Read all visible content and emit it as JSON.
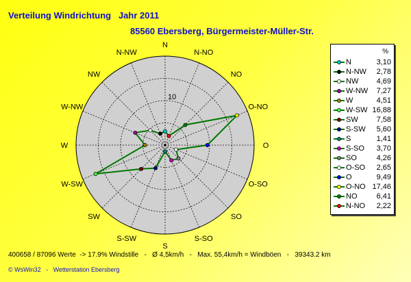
{
  "header": {
    "title": "Verteilung Windrichtung   Jahr 2011",
    "subtitle": "85560 Ebersberg, Bürgermeister-Müller-Str."
  },
  "footer": {
    "stats": "400658 / 87096 Werte  -> 17.9% Windstille   -   Ø 4,5km/h   -   Max. 55,4km/h = Windböen   -   39343.2 km",
    "credit": "© WsWin32   -   Wetterstation Ebersberg"
  },
  "legend": {
    "unit": "%"
  },
  "chart_data": {
    "type": "radar",
    "ring_max": 20,
    "ring_label": "10",
    "line_color": "#007800",
    "directions": [
      "N",
      "N-NO",
      "NO",
      "O-NO",
      "O",
      "O-SO",
      "SO",
      "S-SO",
      "S",
      "S-SW",
      "SW",
      "W-SW",
      "W",
      "W-NW",
      "NW",
      "N-NW"
    ],
    "legend_entries": [
      {
        "label": "N",
        "value": "3,10",
        "v": 3.1,
        "color": "#00c8c8",
        "dir": "N"
      },
      {
        "label": "N-NW",
        "value": "2,78",
        "v": 2.78,
        "color": "#000000",
        "dir": "N-NW"
      },
      {
        "label": "NW",
        "value": "4,69",
        "v": 4.69,
        "color": "#ffffff",
        "dir": "NW"
      },
      {
        "label": "W-NW",
        "value": "7,27",
        "v": 7.27,
        "color": "#a000a0",
        "dir": "W-NW"
      },
      {
        "label": "W",
        "value": "4,51",
        "v": 4.51,
        "color": "#a08000",
        "dir": "W"
      },
      {
        "label": "W-SW",
        "value": "16,88",
        "v": 16.88,
        "color": "#40ff40",
        "dir": "W-SW"
      },
      {
        "label": "SW",
        "value": "7,58",
        "v": 7.58,
        "color": "#800000",
        "dir": "SW"
      },
      {
        "label": "S-SW",
        "value": "5,60",
        "v": 5.6,
        "color": "#000080",
        "dir": "S-SW"
      },
      {
        "label": "S",
        "value": "1,41",
        "v": 1.41,
        "color": "#008080",
        "dir": "S"
      },
      {
        "label": "S-SO",
        "value": "3,70",
        "v": 3.7,
        "color": "#c000c0",
        "dir": "S-SO"
      },
      {
        "label": "SO",
        "value": "4,26",
        "v": 4.26,
        "color": "#808080",
        "dir": "SO"
      },
      {
        "label": "O-SO",
        "value": "2,65",
        "v": 2.65,
        "color": "#ffffff",
        "dir": "O-SO"
      },
      {
        "label": "O",
        "value": "9,49",
        "v": 9.49,
        "color": "#0000ff",
        "dir": "O"
      },
      {
        "label": "O-NO",
        "value": "17,46",
        "v": 17.46,
        "color": "#ffff00",
        "dir": "O-NO"
      },
      {
        "label": "NO",
        "value": "6,41",
        "v": 6.41,
        "color": "#008000",
        "dir": "NO"
      },
      {
        "label": "N-NO",
        "value": "2,22",
        "v": 2.22,
        "color": "#ff0000",
        "dir": "N-NO"
      }
    ]
  }
}
